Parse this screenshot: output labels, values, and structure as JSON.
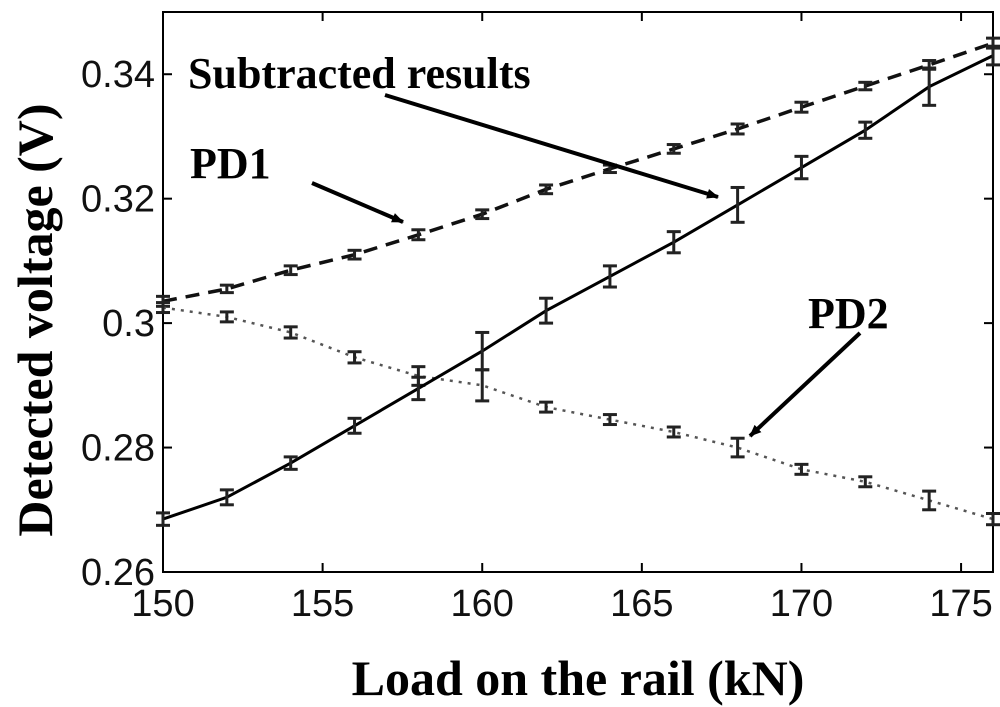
{
  "chart_data": {
    "type": "line",
    "xlabel": "Load on the rail (kN)",
    "ylabel": "Detected voltage (V)",
    "xlim": [
      150,
      176
    ],
    "ylim": [
      0.26,
      0.35
    ],
    "xticks": [
      "150",
      "155",
      "160",
      "165",
      "170",
      "175"
    ],
    "xtick_values": [
      150,
      155,
      160,
      165,
      170,
      175
    ],
    "yticks": [
      "0.26",
      "0.28",
      "0.3",
      "0.32",
      "0.34"
    ],
    "ytick_values": [
      0.26,
      0.28,
      0.3,
      0.32,
      0.34
    ],
    "grid": false,
    "x": [
      150,
      152,
      154,
      156,
      158,
      160,
      162,
      164,
      166,
      168,
      170,
      172,
      174,
      176
    ],
    "series": [
      {
        "name": "PD1",
        "style": "dashed",
        "color": "#111111",
        "values": [
          0.3035,
          0.3055,
          0.3085,
          0.311,
          0.3142,
          0.3175,
          0.3215,
          0.3248,
          0.328,
          0.3312,
          0.3347,
          0.3381,
          0.3415,
          0.345
        ],
        "errors": [
          0.0008,
          0.0006,
          0.0007,
          0.0007,
          0.0008,
          0.0007,
          0.0007,
          0.0006,
          0.0007,
          0.0008,
          0.0008,
          0.0006,
          0.0007,
          0.0008
        ]
      },
      {
        "name": "PD2",
        "style": "dotted",
        "color": "#555555",
        "values": [
          0.3025,
          0.301,
          0.2985,
          0.2945,
          0.2915,
          0.29,
          0.2865,
          0.2845,
          0.2825,
          0.28,
          0.2765,
          0.2745,
          0.2715,
          0.2685
        ],
        "errors": [
          0.0008,
          0.0008,
          0.0009,
          0.0009,
          0.0015,
          0.0025,
          0.0008,
          0.0008,
          0.0008,
          0.0015,
          0.0008,
          0.0008,
          0.0015,
          0.0009
        ]
      },
      {
        "name": "Subtracted results",
        "style": "solid",
        "color": "#000000",
        "values": [
          0.2685,
          0.272,
          0.2775,
          0.2835,
          0.2895,
          0.2955,
          0.302,
          0.3075,
          0.313,
          0.319,
          0.325,
          0.331,
          0.338,
          0.343
        ],
        "errors": [
          0.001,
          0.0012,
          0.001,
          0.0012,
          0.0018,
          0.003,
          0.002,
          0.0017,
          0.0017,
          0.0028,
          0.0018,
          0.0013,
          0.003,
          0.0015
        ]
      }
    ],
    "annotations": [
      {
        "text": "Subtracted results",
        "target_x": 168,
        "target_y": 0.319
      },
      {
        "text": "PD1",
        "target_x": 158,
        "target_y": 0.3142
      },
      {
        "text": "PD2",
        "target_x": 168,
        "target_y": 0.28
      }
    ]
  }
}
